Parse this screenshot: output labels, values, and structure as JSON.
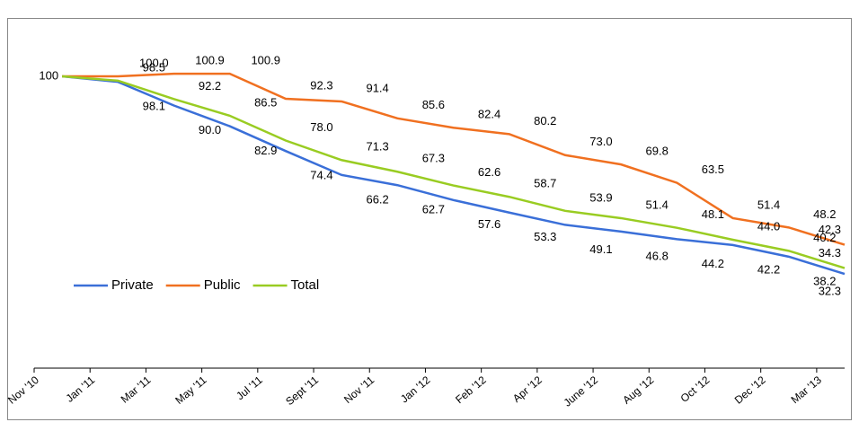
{
  "chart_data": {
    "type": "line",
    "categories": [
      "Nov '10",
      "Jan '11",
      "Mar '11",
      "May '11",
      "Jul '11",
      "Sept '11",
      "Nov '11",
      "Jan '12",
      "Feb '12",
      "Apr '12",
      "June '12",
      "Aug '12",
      "Oct '12",
      "Dec '12",
      "Mar '13"
    ],
    "series": [
      {
        "name": "Private",
        "color": "#3a6fd8",
        "values": [
          100,
          98.1,
          90.0,
          82.9,
          74.4,
          66.2,
          62.7,
          57.6,
          53.3,
          49.1,
          46.8,
          44.2,
          42.2,
          38.2,
          32.3
        ],
        "value_labels": [
          null,
          "98.1",
          "90.0",
          "82.9",
          "74.4",
          "66.2",
          "62.7",
          "57.6",
          "53.3",
          "49.1",
          "46.8",
          "44.2",
          "42.2",
          "38.2",
          "32.3"
        ]
      },
      {
        "name": "Public",
        "color": "#f07020",
        "values": [
          100,
          100.0,
          100.9,
          100.9,
          92.3,
          91.4,
          85.6,
          82.4,
          80.2,
          73.0,
          69.8,
          63.5,
          51.4,
          48.2,
          42.3
        ],
        "value_labels": [
          null,
          "100.0",
          "100.9",
          "100.9",
          "92.3",
          "91.4",
          "85.6",
          "82.4",
          "80.2",
          "73.0",
          "69.8",
          "63.5",
          "51.4",
          "48.2",
          "42.3"
        ]
      },
      {
        "name": "Total",
        "color": "#99cc22",
        "values": [
          100,
          98.5,
          92.2,
          86.5,
          78.0,
          71.3,
          67.3,
          62.6,
          58.7,
          53.9,
          51.4,
          48.1,
          44.0,
          40.2,
          34.3
        ],
        "value_labels": [
          "100",
          "98.5",
          "92.2",
          "86.5",
          "78.0",
          "71.3",
          "67.3",
          "62.6",
          "58.7",
          "53.9",
          "51.4",
          "48.1",
          "44.0",
          "40.2",
          "34.3"
        ]
      }
    ],
    "ylim": [
      0,
      120
    ],
    "legend": "lower left"
  }
}
